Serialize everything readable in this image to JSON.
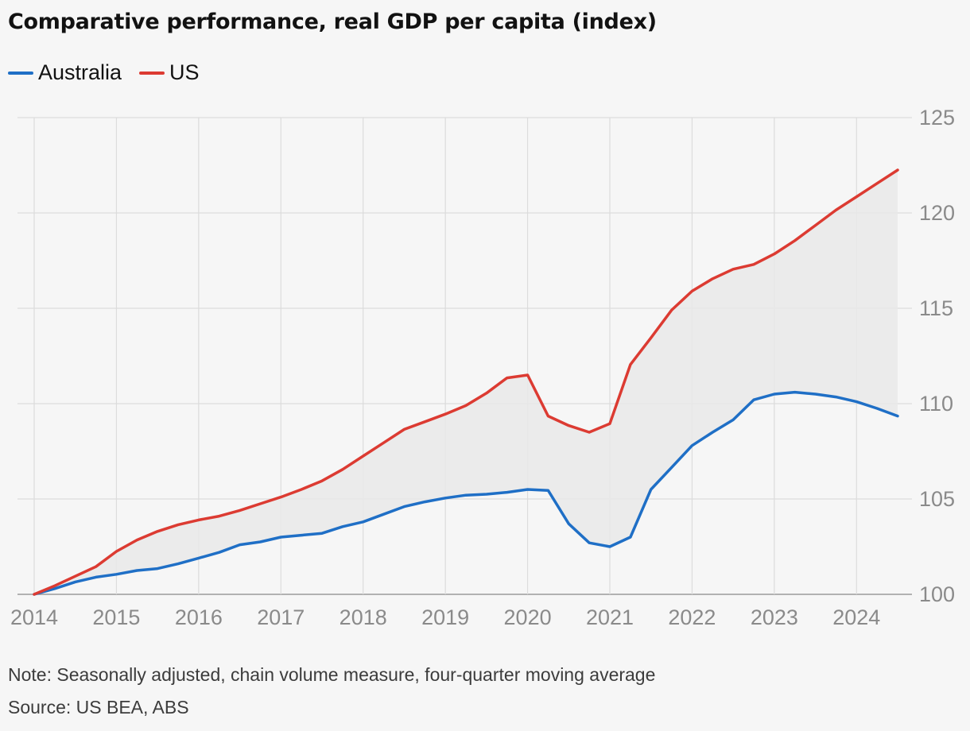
{
  "chart_data": {
    "type": "line",
    "title": "Comparative performance, real GDP per capita (index)",
    "x_tick_labels": [
      "2014",
      "2015",
      "2016",
      "2017",
      "2018",
      "2019",
      "2020",
      "2021",
      "2022",
      "2023",
      "2024"
    ],
    "y_tick_labels": [
      "100",
      "105",
      "110",
      "115",
      "120",
      "125"
    ],
    "xlim": [
      2014,
      2024.5
    ],
    "ylim": [
      100,
      125
    ],
    "y_axis_position": "right",
    "grid": true,
    "legend_position": "top-left",
    "shaded_area_between_series": true,
    "x": [
      2014,
      2014.25,
      2014.5,
      2014.75,
      2015,
      2015.25,
      2015.5,
      2015.75,
      2016,
      2016.25,
      2016.5,
      2016.75,
      2017,
      2017.25,
      2017.5,
      2017.75,
      2018,
      2018.25,
      2018.5,
      2018.75,
      2019,
      2019.25,
      2019.5,
      2019.75,
      2020,
      2020.25,
      2020.5,
      2020.75,
      2021,
      2021.25,
      2021.5,
      2021.75,
      2022,
      2022.25,
      2022.5,
      2022.75,
      2023,
      2023.25,
      2023.5,
      2023.75,
      2024,
      2024.25,
      2024.5
    ],
    "series": [
      {
        "name": "Australia",
        "color": "#1f6fc6",
        "values": [
          100,
          100.3,
          100.65,
          100.9,
          101.05,
          101.25,
          101.35,
          101.6,
          101.9,
          102.2,
          102.6,
          102.75,
          103.0,
          103.1,
          103.2,
          103.55,
          103.8,
          104.2,
          104.6,
          104.85,
          105.05,
          105.2,
          105.25,
          105.35,
          105.5,
          105.45,
          103.7,
          102.7,
          102.5,
          103.0,
          105.5,
          106.65,
          107.8,
          108.5,
          109.15,
          110.2,
          110.5,
          110.6,
          110.5,
          110.35,
          110.1,
          109.75,
          109.35
        ]
      },
      {
        "name": "US",
        "color": "#dc3b32",
        "values": [
          100,
          100.45,
          100.95,
          101.45,
          102.25,
          102.85,
          103.3,
          103.65,
          103.9,
          104.1,
          104.4,
          104.75,
          105.1,
          105.5,
          105.95,
          106.55,
          107.25,
          107.95,
          108.65,
          109.05,
          109.45,
          109.9,
          110.55,
          111.35,
          111.5,
          109.35,
          108.85,
          108.5,
          108.95,
          112.05,
          113.45,
          114.9,
          115.9,
          116.55,
          117.05,
          117.3,
          117.85,
          118.55,
          119.35,
          120.15,
          120.85,
          121.55,
          122.25
        ]
      }
    ]
  },
  "footer": {
    "note": "Note: Seasonally adjusted, chain volume measure, four-quarter moving average",
    "source": "Source: US BEA, ABS"
  }
}
